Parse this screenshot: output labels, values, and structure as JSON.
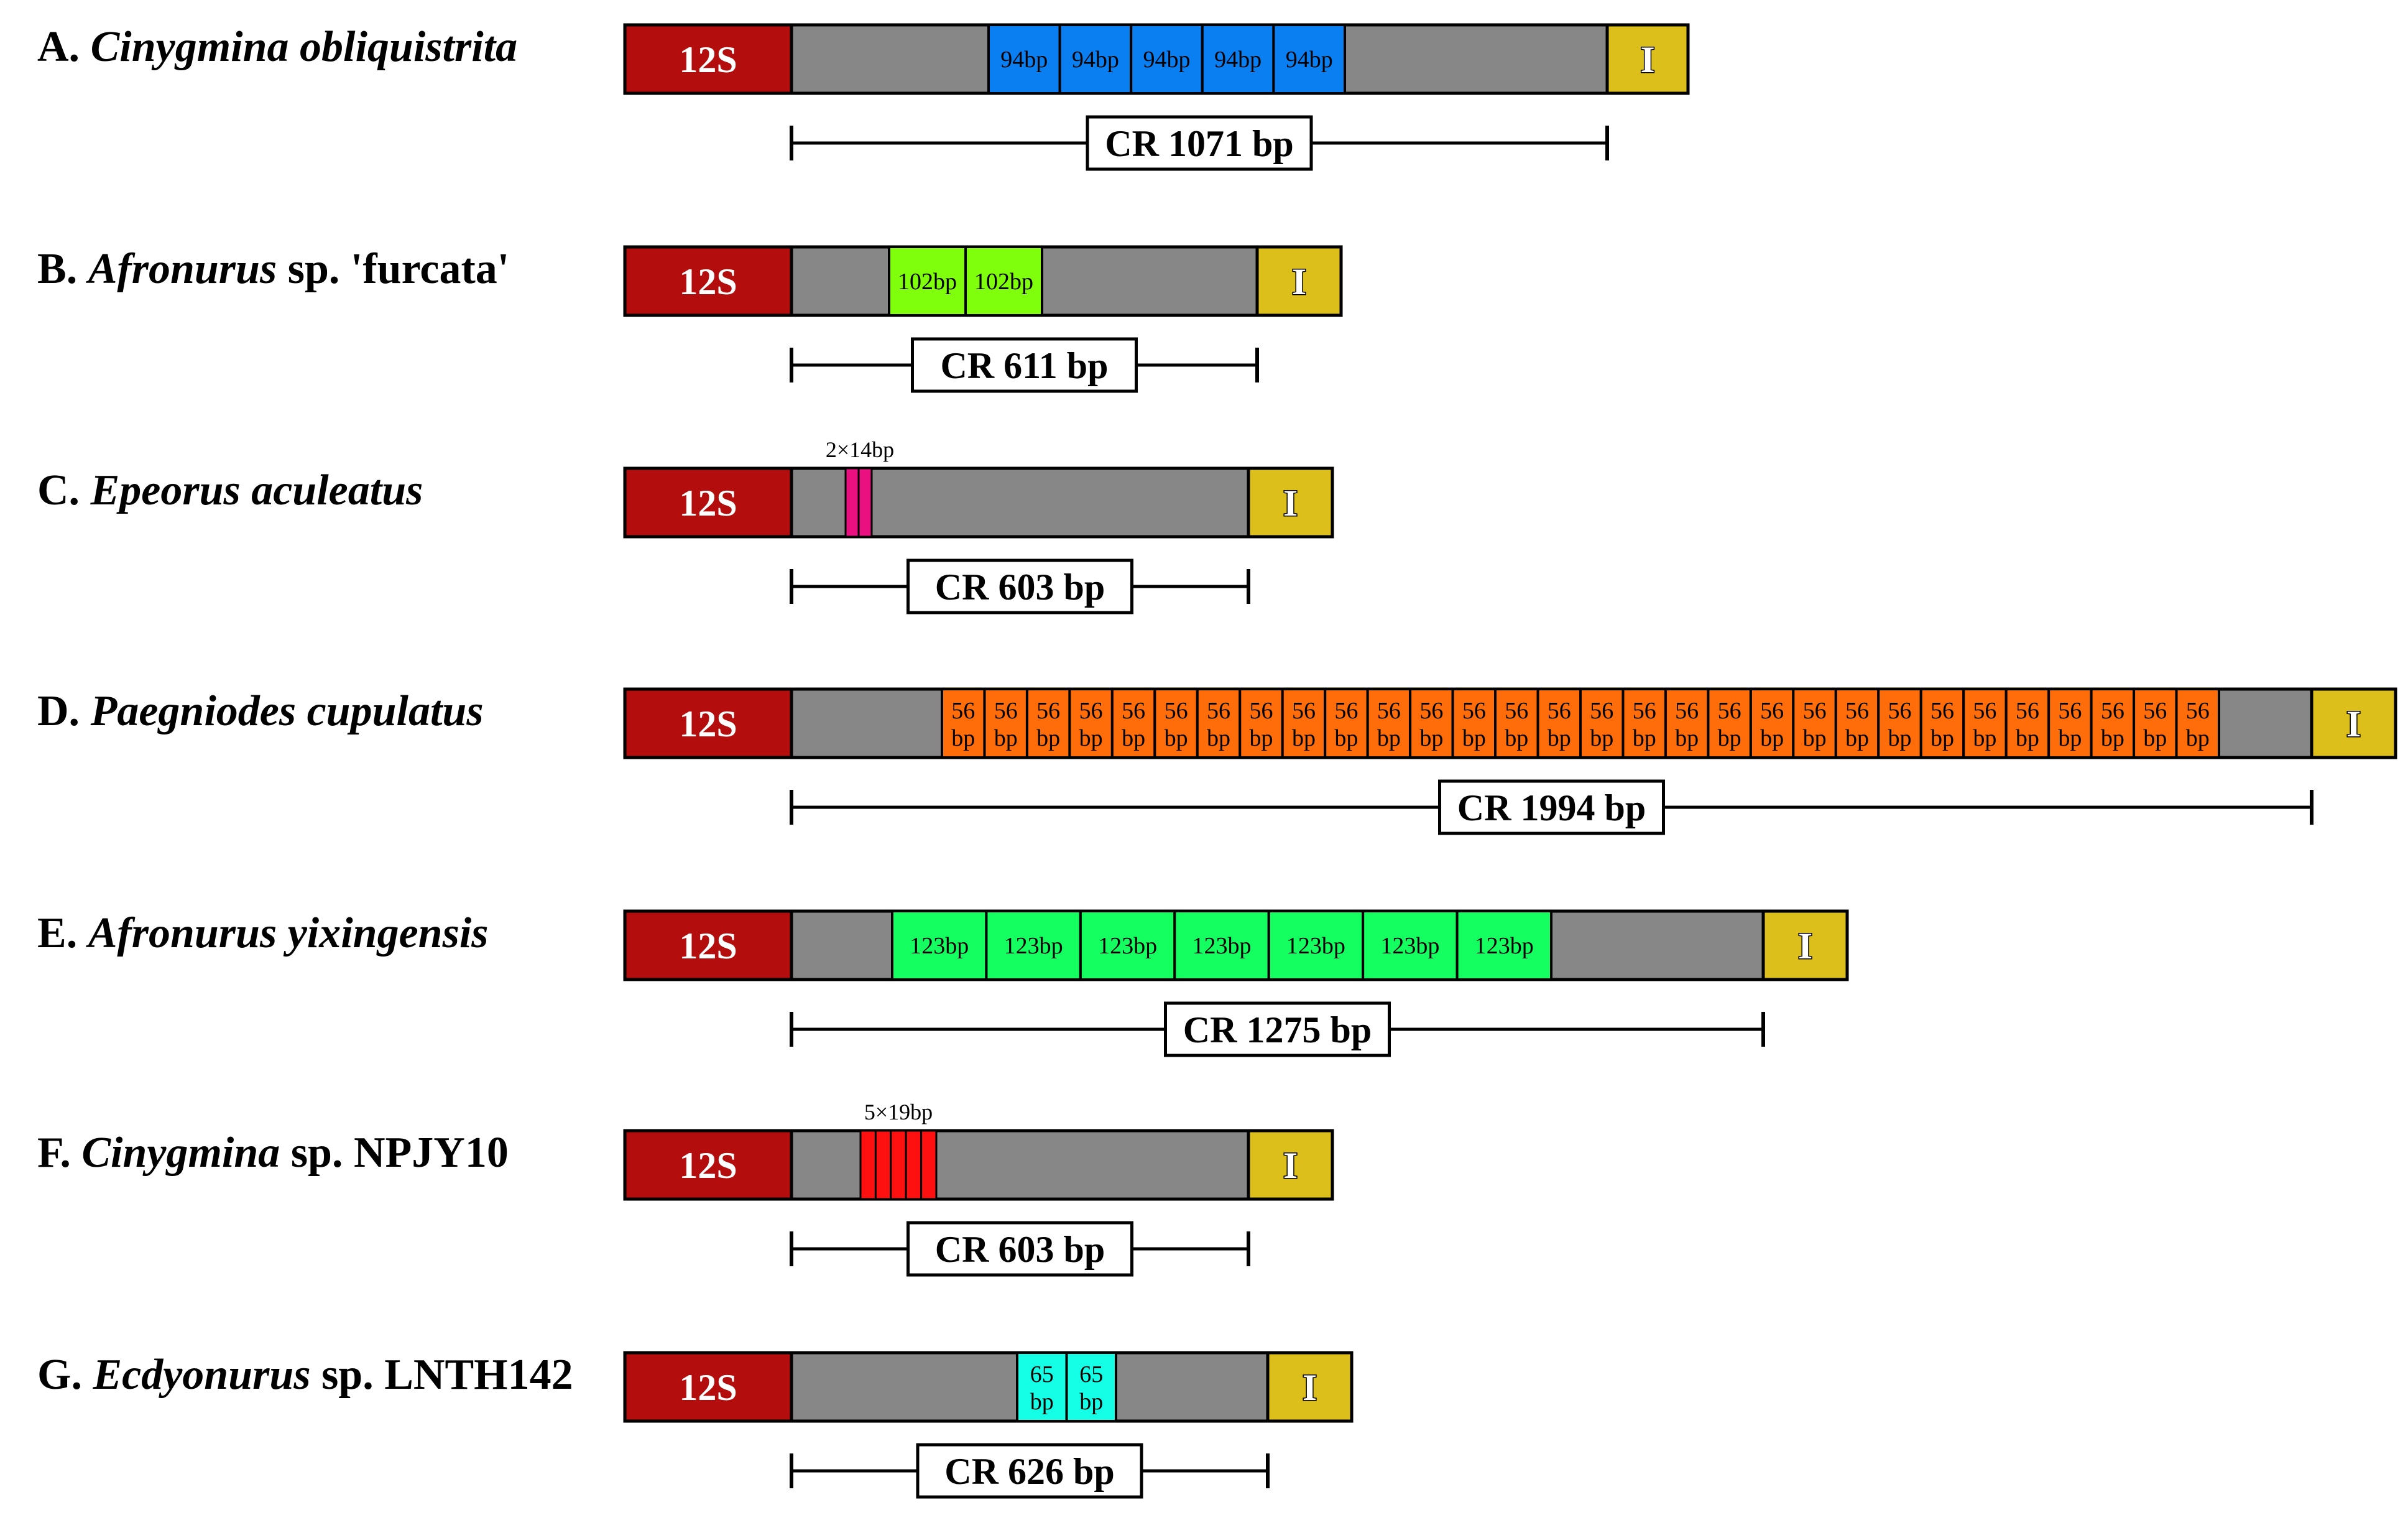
{
  "legend_colors": {
    "rrna_12s": "#b30d0d",
    "control_region": "#878787",
    "trna_ile": "#dcbf1a",
    "outline": "#000000"
  },
  "rows": [
    {
      "letter": "A.",
      "genus": "Cinygmina",
      "epithet_italic": "obliquistrita",
      "suffix": "",
      "rrna_label": "12S",
      "trna_label": "I",
      "cr_label": "CR 1071 bp",
      "repeat_style": "block",
      "repeat_color": "#0a7ff2",
      "repeat_lines": [
        "94bp"
      ],
      "repeat_count": 5,
      "repeat_note": ""
    },
    {
      "letter": "B.",
      "genus": "Afronurus",
      "epithet_italic": "",
      "suffix": "sp. 'furcata'",
      "rrna_label": "12S",
      "trna_label": "I",
      "cr_label": "CR 611 bp",
      "repeat_style": "block",
      "repeat_color": "#80ff0d",
      "repeat_lines": [
        "102bp"
      ],
      "repeat_count": 2,
      "repeat_note": ""
    },
    {
      "letter": "C.",
      "genus": "Epeorus",
      "epithet_italic": "aculeatus",
      "suffix": "",
      "rrna_label": "12S",
      "trna_label": "I",
      "cr_label": "CR 603 bp",
      "repeat_style": "stripe",
      "repeat_color": "#ea1080",
      "repeat_lines": [],
      "repeat_count": 2,
      "repeat_note": "2×14bp"
    },
    {
      "letter": "D.",
      "genus": "Paegniodes",
      "epithet_italic": "cupulatus",
      "suffix": "",
      "rrna_label": "12S",
      "trna_label": "I",
      "cr_label": "CR 1994 bp",
      "repeat_style": "block",
      "repeat_color": "#ff6c0a",
      "repeat_lines": [
        "56",
        "bp"
      ],
      "repeat_count": 30,
      "repeat_note": ""
    },
    {
      "letter": "E.",
      "genus": "Afronurus",
      "epithet_italic": "yixingensis",
      "suffix": "",
      "rrna_label": "12S",
      "trna_label": "I",
      "cr_label": "CR 1275 bp",
      "repeat_style": "block",
      "repeat_color": "#14ff60",
      "repeat_lines": [
        "123bp"
      ],
      "repeat_count": 7,
      "repeat_note": ""
    },
    {
      "letter": "F.",
      "genus": "Cinygmina",
      "epithet_italic": "",
      "suffix": "sp. NPJY10",
      "rrna_label": "12S",
      "trna_label": "I",
      "cr_label": "CR 603 bp",
      "repeat_style": "stripe",
      "repeat_color": "#ff1010",
      "repeat_lines": [],
      "repeat_count": 5,
      "repeat_note": "5×19bp"
    },
    {
      "letter": "G.",
      "genus": "Ecdyonurus",
      "epithet_italic": "",
      "suffix": "sp. LNTH142",
      "rrna_label": "12S",
      "trna_label": "I",
      "cr_label": "CR 626 bp",
      "repeat_style": "block",
      "repeat_color": "#14ffe6",
      "repeat_lines": [
        "65",
        "bp"
      ],
      "repeat_count": 2,
      "repeat_note": ""
    }
  ]
}
